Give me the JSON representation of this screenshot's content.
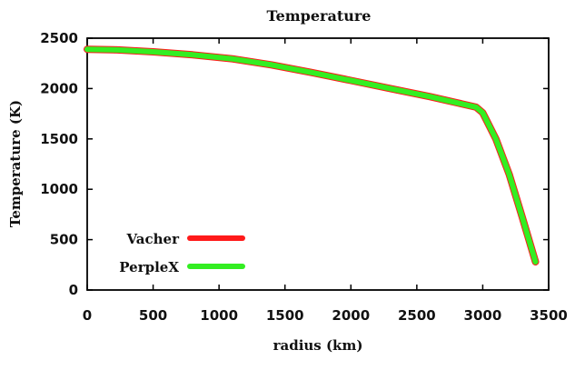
{
  "chart_data": {
    "type": "line",
    "title": "Temperature",
    "xlabel": "radius (km)",
    "ylabel": "Temperature (K)",
    "xlim": [
      0,
      3500
    ],
    "ylim": [
      0,
      2500
    ],
    "xticks": [
      0,
      500,
      1000,
      1500,
      2000,
      2500,
      3000,
      3500
    ],
    "yticks": [
      0,
      500,
      1000,
      1500,
      2000,
      2500
    ],
    "grid": false,
    "legend_position": "bottom-left",
    "series": [
      {
        "name": "Vacher",
        "color": "#ff1a1a",
        "x": [
          0,
          200,
          500,
          800,
          1100,
          1400,
          1700,
          2000,
          2300,
          2600,
          2800,
          2950,
          3000,
          3100,
          3200,
          3300,
          3400
        ],
        "y": [
          2390,
          2385,
          2365,
          2335,
          2295,
          2235,
          2160,
          2080,
          2000,
          1920,
          1860,
          1815,
          1760,
          1500,
          1150,
          720,
          280
        ]
      },
      {
        "name": "PerpleX",
        "color": "#33ee22",
        "x": [
          0,
          200,
          500,
          800,
          1100,
          1400,
          1700,
          2000,
          2300,
          2600,
          2800,
          2950,
          3000,
          3100,
          3200,
          3300,
          3400
        ],
        "y": [
          2390,
          2385,
          2365,
          2335,
          2295,
          2235,
          2160,
          2080,
          2000,
          1920,
          1860,
          1815,
          1760,
          1500,
          1150,
          720,
          280
        ]
      }
    ]
  }
}
